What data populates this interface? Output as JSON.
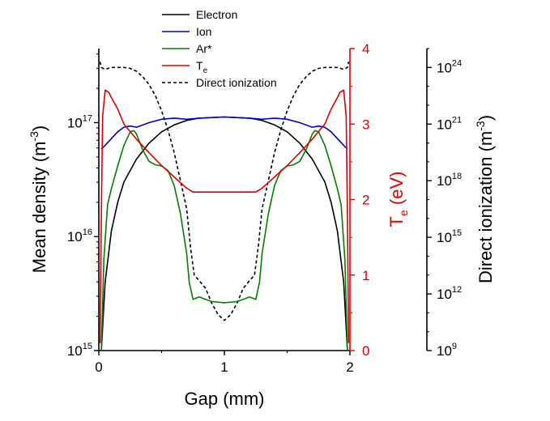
{
  "chart_data": {
    "type": "line",
    "xlabel": "Gap (mm)",
    "ylabel_left": "Mean density (m",
    "ylabel_left_sup": "-3",
    "ylabel_left_close": ")",
    "ylabel_red_main": "T",
    "ylabel_red_sub": "e",
    "ylabel_red_unit": " (eV)",
    "ylabel_right": "Direct ionization (m",
    "ylabel_right_sup": "-3",
    "ylabel_right_close": ")",
    "xlim": [
      0,
      2
    ],
    "xticks": [
      {
        "value": 0,
        "label": "0"
      },
      {
        "value": 1,
        "label": "1"
      },
      {
        "value": 2,
        "label": "2"
      }
    ],
    "ylim_left_log10": [
      15,
      17.65
    ],
    "yticks_left": [
      {
        "exp": 15,
        "label": "10",
        "sup": "15"
      },
      {
        "exp": 16,
        "label": "10",
        "sup": "16"
      },
      {
        "exp": 17,
        "label": "10",
        "sup": "17"
      }
    ],
    "ylim_red": [
      0,
      4
    ],
    "yticks_red": [
      0,
      1,
      2,
      3,
      4
    ],
    "ylim_right_log10": [
      9,
      25
    ],
    "yticks_right": [
      {
        "exp": 9,
        "label": "10",
        "sup": "9"
      },
      {
        "exp": 12,
        "label": "10",
        "sup": "12"
      },
      {
        "exp": 15,
        "label": "10",
        "sup": "15"
      },
      {
        "exp": 18,
        "label": "10",
        "sup": "18"
      },
      {
        "exp": 21,
        "label": "10",
        "sup": "21"
      },
      {
        "exp": 24,
        "label": "10",
        "sup": "24"
      }
    ],
    "legend_position": "top-center",
    "series": [
      {
        "name": "Electron",
        "axis": "left",
        "color": "#000000",
        "dash": "",
        "x": [
          0.02,
          0.05,
          0.1,
          0.15,
          0.2,
          0.3,
          0.4,
          0.5,
          0.6,
          0.7,
          0.8,
          1.0,
          1.2,
          1.3,
          1.4,
          1.5,
          1.6,
          1.7,
          1.8,
          1.85,
          1.9,
          1.95,
          1.98
        ],
        "log10y": [
          15.0,
          15.6,
          16.05,
          16.3,
          16.48,
          16.68,
          16.82,
          16.92,
          16.98,
          17.02,
          17.04,
          17.05,
          17.04,
          17.02,
          16.98,
          16.92,
          16.82,
          16.68,
          16.48,
          16.3,
          16.05,
          15.6,
          15.0
        ]
      },
      {
        "name": "Ion",
        "axis": "left",
        "color": "#0000cc",
        "dash": "",
        "x": [
          0.02,
          0.05,
          0.1,
          0.15,
          0.2,
          0.25,
          0.3,
          0.4,
          0.5,
          0.6,
          0.7,
          0.8,
          1.0,
          1.2,
          1.3,
          1.4,
          1.5,
          1.6,
          1.7,
          1.75,
          1.8,
          1.85,
          1.9,
          1.95,
          1.98
        ],
        "log10y": [
          16.77,
          16.8,
          16.86,
          16.92,
          16.96,
          16.97,
          16.96,
          17.0,
          17.03,
          17.04,
          17.03,
          17.04,
          17.05,
          17.04,
          17.03,
          17.04,
          17.03,
          17.0,
          16.96,
          16.97,
          16.96,
          16.92,
          16.86,
          16.8,
          16.77
        ]
      },
      {
        "name": "Ar*",
        "axis": "left",
        "color": "#008000",
        "dash": "",
        "x": [
          0.02,
          0.04,
          0.07,
          0.1,
          0.15,
          0.2,
          0.25,
          0.28,
          0.3,
          0.35,
          0.4,
          0.45,
          0.5,
          0.55,
          0.6,
          0.65,
          0.7,
          0.72,
          0.75,
          0.8,
          0.85,
          0.9,
          1.0,
          1.1,
          1.15,
          1.2,
          1.25,
          1.28,
          1.3,
          1.35,
          1.4,
          1.45,
          1.5,
          1.55,
          1.6,
          1.65,
          1.7,
          1.72,
          1.75,
          1.8,
          1.85,
          1.9,
          1.93,
          1.96,
          1.98
        ],
        "log10y": [
          15.0,
          15.8,
          16.28,
          16.42,
          16.62,
          16.8,
          16.92,
          16.93,
          16.9,
          16.76,
          16.66,
          16.63,
          16.62,
          16.58,
          16.45,
          16.2,
          15.85,
          15.6,
          15.45,
          15.47,
          15.45,
          15.43,
          15.42,
          15.43,
          15.45,
          15.47,
          15.45,
          15.6,
          15.85,
          16.2,
          16.45,
          16.58,
          16.62,
          16.63,
          16.66,
          16.76,
          16.9,
          16.93,
          16.92,
          16.8,
          16.62,
          16.42,
          16.28,
          15.8,
          15.0
        ]
      },
      {
        "name": "T",
        "name_sub": "e",
        "axis": "red",
        "color": "#e00000",
        "dash": "",
        "x": [
          0.01,
          0.02,
          0.03,
          0.05,
          0.08,
          0.1,
          0.15,
          0.2,
          0.3,
          0.4,
          0.5,
          0.6,
          0.7,
          0.75,
          0.8,
          1.0,
          1.2,
          1.25,
          1.3,
          1.4,
          1.5,
          1.6,
          1.7,
          1.8,
          1.85,
          1.9,
          1.92,
          1.95,
          1.97,
          1.98,
          1.99
        ],
        "y": [
          0.1,
          1.8,
          3.1,
          3.45,
          3.42,
          3.35,
          3.2,
          3.0,
          2.8,
          2.62,
          2.45,
          2.3,
          2.15,
          2.1,
          2.1,
          2.1,
          2.1,
          2.1,
          2.15,
          2.3,
          2.45,
          2.62,
          2.8,
          3.0,
          3.2,
          3.35,
          3.42,
          3.45,
          3.1,
          1.8,
          0.1
        ]
      },
      {
        "name": "Direct ionization",
        "axis": "right",
        "color": "#000000",
        "dash": "4,3",
        "x": [
          0.01,
          0.02,
          0.05,
          0.1,
          0.2,
          0.25,
          0.3,
          0.35,
          0.4,
          0.45,
          0.5,
          0.55,
          0.6,
          0.65,
          0.7,
          0.73,
          0.76,
          0.8,
          0.85,
          0.9,
          0.95,
          1.0,
          1.05,
          1.1,
          1.15,
          1.2,
          1.24,
          1.27,
          1.3,
          1.35,
          1.4,
          1.45,
          1.5,
          1.55,
          1.6,
          1.65,
          1.7,
          1.75,
          1.8,
          1.9,
          1.95,
          1.98,
          1.99
        ],
        "log10y": [
          24.3,
          24.0,
          23.9,
          24.0,
          24.0,
          23.95,
          23.8,
          23.5,
          23.1,
          22.5,
          21.7,
          20.7,
          19.5,
          18.0,
          16.5,
          14.5,
          13.0,
          12.7,
          12.3,
          11.5,
          10.9,
          10.6,
          10.9,
          11.5,
          12.3,
          12.7,
          13.0,
          14.5,
          16.5,
          18.0,
          19.5,
          20.7,
          21.7,
          22.5,
          23.1,
          23.5,
          23.8,
          23.95,
          24.0,
          24.0,
          23.9,
          24.0,
          24.3
        ]
      }
    ]
  },
  "colors": {
    "axis_black": "#000000",
    "axis_red": "#e00000"
  }
}
